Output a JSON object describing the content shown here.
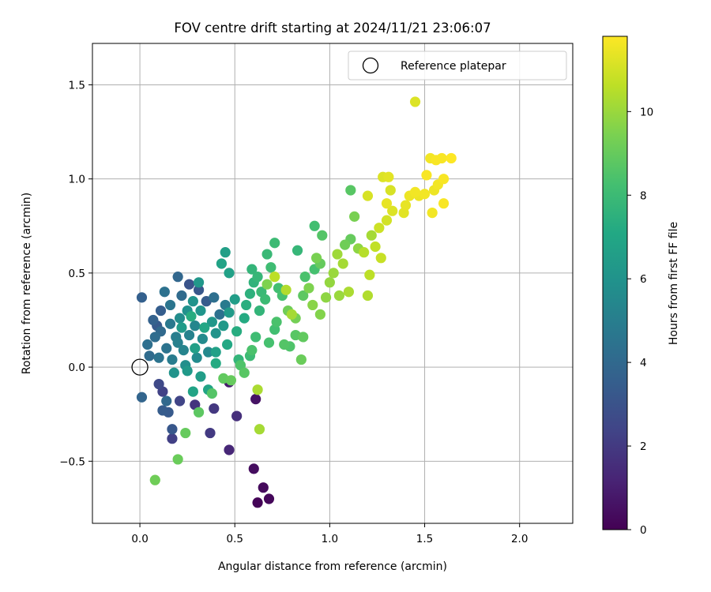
{
  "chart_data": {
    "type": "scatter",
    "title": "FOV centre drift starting at 2024/11/21 23:06:07",
    "xlabel": "Angular distance from reference (arcmin)",
    "ylabel": "Rotation from reference (arcmin)",
    "xlim": [
      -0.25,
      2.28
    ],
    "ylim": [
      -0.83,
      1.72
    ],
    "xticks": [
      0.0,
      0.5,
      1.0,
      1.5,
      2.0
    ],
    "xtick_labels": [
      "0.0",
      "0.5",
      "1.0",
      "1.5",
      "2.0"
    ],
    "yticks": [
      -0.5,
      0.0,
      0.5,
      1.0,
      1.5
    ],
    "ytick_labels": [
      "−0.5",
      "0.0",
      "0.5",
      "1.0",
      "1.5"
    ],
    "grid": true,
    "legend": {
      "position": "top-right",
      "entries": [
        "Reference platepar"
      ]
    },
    "reference_point": {
      "x": 0.0,
      "y": 0.0
    },
    "colorbar": {
      "label": "Hours from first FF file",
      "colormap": "viridis",
      "range": [
        0,
        11.8
      ],
      "ticks": [
        0,
        2,
        4,
        6,
        8,
        10
      ],
      "tick_labels": [
        "0",
        "2",
        "4",
        "6",
        "8",
        "10"
      ]
    },
    "points": [
      {
        "x": 0.62,
        "y": -0.72,
        "t": 0.1
      },
      {
        "x": 0.68,
        "y": -0.7,
        "t": 0.2
      },
      {
        "x": 0.65,
        "y": -0.64,
        "t": 0.3
      },
      {
        "x": 0.6,
        "y": -0.54,
        "t": 0.4
      },
      {
        "x": 0.61,
        "y": -0.17,
        "t": 0.6
      },
      {
        "x": 0.47,
        "y": -0.08,
        "t": 0.9
      },
      {
        "x": 0.47,
        "y": -0.44,
        "t": 1.3
      },
      {
        "x": 0.51,
        "y": -0.26,
        "t": 1.6
      },
      {
        "x": 0.37,
        "y": -0.35,
        "t": 2.0
      },
      {
        "x": 0.39,
        "y": -0.22,
        "t": 1.9
      },
      {
        "x": 0.17,
        "y": -0.38,
        "t": 2.2
      },
      {
        "x": 0.29,
        "y": -0.2,
        "t": 1.8
      },
      {
        "x": 0.21,
        "y": -0.18,
        "t": 2.4
      },
      {
        "x": 0.1,
        "y": -0.09,
        "t": 2.6
      },
      {
        "x": 0.12,
        "y": -0.13,
        "t": 2.3
      },
      {
        "x": 0.17,
        "y": -0.33,
        "t": 3.2
      },
      {
        "x": 0.15,
        "y": -0.24,
        "t": 3.3
      },
      {
        "x": 0.01,
        "y": -0.16,
        "t": 3.8
      },
      {
        "x": 0.12,
        "y": -0.23,
        "t": 3.4
      },
      {
        "x": 0.14,
        "y": -0.18,
        "t": 4.0
      },
      {
        "x": 0.01,
        "y": 0.37,
        "t": 3.6
      },
      {
        "x": 0.07,
        "y": 0.25,
        "t": 3.7
      },
      {
        "x": 0.05,
        "y": 0.06,
        "t": 4.1
      },
      {
        "x": 0.04,
        "y": 0.12,
        "t": 4.3
      },
      {
        "x": 0.08,
        "y": 0.16,
        "t": 4.2
      },
      {
        "x": 0.09,
        "y": 0.22,
        "t": 3.3
      },
      {
        "x": 0.11,
        "y": 0.3,
        "t": 3.5
      },
      {
        "x": 0.13,
        "y": 0.4,
        "t": 4.4
      },
      {
        "x": 0.16,
        "y": 0.33,
        "t": 4.6
      },
      {
        "x": 0.2,
        "y": 0.48,
        "t": 3.9
      },
      {
        "x": 0.22,
        "y": 0.38,
        "t": 4.1
      },
      {
        "x": 0.26,
        "y": 0.44,
        "t": 3.0
      },
      {
        "x": 0.31,
        "y": 0.41,
        "t": 3.2
      },
      {
        "x": 0.35,
        "y": 0.35,
        "t": 3.4
      },
      {
        "x": 0.39,
        "y": 0.37,
        "t": 4.3
      },
      {
        "x": 0.42,
        "y": 0.28,
        "t": 4.4
      },
      {
        "x": 0.45,
        "y": 0.33,
        "t": 4.8
      },
      {
        "x": 0.14,
        "y": 0.1,
        "t": 4.5
      },
      {
        "x": 0.17,
        "y": 0.04,
        "t": 4.9
      },
      {
        "x": 0.2,
        "y": 0.13,
        "t": 5.1
      },
      {
        "x": 0.23,
        "y": 0.09,
        "t": 5.3
      },
      {
        "x": 0.26,
        "y": 0.17,
        "t": 5.2
      },
      {
        "x": 0.29,
        "y": 0.22,
        "t": 5.4
      },
      {
        "x": 0.33,
        "y": 0.15,
        "t": 5.6
      },
      {
        "x": 0.36,
        "y": 0.08,
        "t": 5.5
      },
      {
        "x": 0.21,
        "y": 0.26,
        "t": 5.7
      },
      {
        "x": 0.25,
        "y": 0.3,
        "t": 5.9
      },
      {
        "x": 0.28,
        "y": 0.35,
        "t": 6.0
      },
      {
        "x": 0.32,
        "y": 0.3,
        "t": 6.1
      },
      {
        "x": 0.38,
        "y": 0.24,
        "t": 6.2
      },
      {
        "x": 0.4,
        "y": 0.18,
        "t": 6.0
      },
      {
        "x": 0.44,
        "y": 0.22,
        "t": 6.3
      },
      {
        "x": 0.47,
        "y": 0.29,
        "t": 6.4
      },
      {
        "x": 0.5,
        "y": 0.36,
        "t": 6.5
      },
      {
        "x": 0.45,
        "y": 0.61,
        "t": 6.6
      },
      {
        "x": 0.43,
        "y": 0.55,
        "t": 6.8
      },
      {
        "x": 0.47,
        "y": 0.5,
        "t": 6.7
      },
      {
        "x": 0.31,
        "y": 0.45,
        "t": 6.2
      },
      {
        "x": 0.22,
        "y": 0.21,
        "t": 6.4
      },
      {
        "x": 0.18,
        "y": -0.03,
        "t": 6.0
      },
      {
        "x": 0.25,
        "y": -0.02,
        "t": 6.3
      },
      {
        "x": 0.28,
        "y": -0.13,
        "t": 6.8
      },
      {
        "x": 0.32,
        "y": -0.05,
        "t": 6.5
      },
      {
        "x": 0.36,
        "y": -0.12,
        "t": 6.9
      },
      {
        "x": 0.24,
        "y": 0.01,
        "t": 5.8
      },
      {
        "x": 0.3,
        "y": 0.05,
        "t": 5.6
      },
      {
        "x": 0.4,
        "y": 0.08,
        "t": 6.7
      },
      {
        "x": 0.46,
        "y": 0.12,
        "t": 7.1
      },
      {
        "x": 0.51,
        "y": 0.19,
        "t": 7.3
      },
      {
        "x": 0.55,
        "y": 0.26,
        "t": 7.2
      },
      {
        "x": 0.56,
        "y": 0.33,
        "t": 7.4
      },
      {
        "x": 0.58,
        "y": 0.39,
        "t": 7.5
      },
      {
        "x": 0.6,
        "y": 0.45,
        "t": 7.6
      },
      {
        "x": 0.59,
        "y": 0.52,
        "t": 7.7
      },
      {
        "x": 0.62,
        "y": 0.48,
        "t": 7.8
      },
      {
        "x": 0.63,
        "y": 0.3,
        "t": 7.7
      },
      {
        "x": 0.64,
        "y": 0.4,
        "t": 7.9
      },
      {
        "x": 0.66,
        "y": 0.36,
        "t": 8.0
      },
      {
        "x": 0.69,
        "y": 0.53,
        "t": 8.1
      },
      {
        "x": 0.71,
        "y": 0.66,
        "t": 8.0
      },
      {
        "x": 0.67,
        "y": 0.6,
        "t": 7.9
      },
      {
        "x": 0.73,
        "y": 0.42,
        "t": 8.2
      },
      {
        "x": 0.75,
        "y": 0.38,
        "t": 8.3
      },
      {
        "x": 0.71,
        "y": 0.2,
        "t": 8.2
      },
      {
        "x": 0.72,
        "y": 0.24,
        "t": 8.4
      },
      {
        "x": 0.68,
        "y": 0.13,
        "t": 8.3
      },
      {
        "x": 0.61,
        "y": 0.16,
        "t": 8.1
      },
      {
        "x": 0.58,
        "y": 0.06,
        "t": 8.0
      },
      {
        "x": 0.53,
        "y": 0.01,
        "t": 8.5
      },
      {
        "x": 0.55,
        "y": -0.03,
        "t": 8.7
      },
      {
        "x": 0.44,
        "y": -0.06,
        "t": 8.9
      },
      {
        "x": 0.48,
        "y": -0.07,
        "t": 9.0
      },
      {
        "x": 0.24,
        "y": -0.35,
        "t": 9.0
      },
      {
        "x": 0.2,
        "y": -0.49,
        "t": 9.1
      },
      {
        "x": 0.08,
        "y": -0.6,
        "t": 9.2
      },
      {
        "x": 0.31,
        "y": -0.24,
        "t": 8.8
      },
      {
        "x": 0.38,
        "y": -0.14,
        "t": 8.6
      },
      {
        "x": 0.59,
        "y": 0.09,
        "t": 8.4
      },
      {
        "x": 0.76,
        "y": 0.12,
        "t": 8.6
      },
      {
        "x": 0.79,
        "y": 0.11,
        "t": 8.5
      },
      {
        "x": 0.82,
        "y": 0.17,
        "t": 8.7
      },
      {
        "x": 0.86,
        "y": 0.16,
        "t": 8.9
      },
      {
        "x": 0.85,
        "y": 0.04,
        "t": 9.1
      },
      {
        "x": 0.78,
        "y": 0.3,
        "t": 9.2
      },
      {
        "x": 0.82,
        "y": 0.26,
        "t": 9.3
      },
      {
        "x": 0.86,
        "y": 0.38,
        "t": 8.8
      },
      {
        "x": 0.87,
        "y": 0.48,
        "t": 8.4
      },
      {
        "x": 0.92,
        "y": 0.52,
        "t": 8.3
      },
      {
        "x": 0.95,
        "y": 0.55,
        "t": 9.0
      },
      {
        "x": 0.93,
        "y": 0.58,
        "t": 9.4
      },
      {
        "x": 0.96,
        "y": 0.7,
        "t": 8.6
      },
      {
        "x": 0.92,
        "y": 0.75,
        "t": 8.2
      },
      {
        "x": 0.83,
        "y": 0.62,
        "t": 7.8
      },
      {
        "x": 0.89,
        "y": 0.42,
        "t": 9.5
      },
      {
        "x": 0.91,
        "y": 0.33,
        "t": 9.7
      },
      {
        "x": 0.95,
        "y": 0.28,
        "t": 9.6
      },
      {
        "x": 0.98,
        "y": 0.37,
        "t": 9.8
      },
      {
        "x": 1.0,
        "y": 0.45,
        "t": 9.9
      },
      {
        "x": 1.02,
        "y": 0.5,
        "t": 10.0
      },
      {
        "x": 1.04,
        "y": 0.6,
        "t": 10.1
      },
      {
        "x": 1.07,
        "y": 0.55,
        "t": 10.2
      },
      {
        "x": 1.05,
        "y": 0.38,
        "t": 10.0
      },
      {
        "x": 1.1,
        "y": 0.4,
        "t": 10.3
      },
      {
        "x": 1.08,
        "y": 0.65,
        "t": 9.2
      },
      {
        "x": 1.11,
        "y": 0.68,
        "t": 9.0
      },
      {
        "x": 1.13,
        "y": 0.8,
        "t": 9.4
      },
      {
        "x": 1.11,
        "y": 0.94,
        "t": 8.7
      },
      {
        "x": 1.15,
        "y": 0.63,
        "t": 9.8
      },
      {
        "x": 1.18,
        "y": 0.61,
        "t": 10.5
      },
      {
        "x": 1.21,
        "y": 0.49,
        "t": 10.6
      },
      {
        "x": 1.2,
        "y": 0.38,
        "t": 10.4
      },
      {
        "x": 1.22,
        "y": 0.7,
        "t": 10.2
      },
      {
        "x": 1.24,
        "y": 0.64,
        "t": 10.7
      },
      {
        "x": 1.27,
        "y": 0.58,
        "t": 10.8
      },
      {
        "x": 1.26,
        "y": 0.74,
        "t": 10.9
      },
      {
        "x": 1.3,
        "y": 0.78,
        "t": 11.0
      },
      {
        "x": 1.2,
        "y": 0.91,
        "t": 11.1
      },
      {
        "x": 1.28,
        "y": 1.01,
        "t": 11.2
      },
      {
        "x": 1.31,
        "y": 1.01,
        "t": 11.3
      },
      {
        "x": 1.32,
        "y": 0.94,
        "t": 11.1
      },
      {
        "x": 1.3,
        "y": 0.87,
        "t": 11.4
      },
      {
        "x": 1.33,
        "y": 0.83,
        "t": 11.2
      },
      {
        "x": 1.39,
        "y": 0.82,
        "t": 11.3
      },
      {
        "x": 1.4,
        "y": 0.86,
        "t": 11.4
      },
      {
        "x": 1.42,
        "y": 0.91,
        "t": 11.5
      },
      {
        "x": 1.45,
        "y": 0.93,
        "t": 11.6
      },
      {
        "x": 1.47,
        "y": 0.91,
        "t": 11.5
      },
      {
        "x": 1.5,
        "y": 0.92,
        "t": 11.6
      },
      {
        "x": 1.51,
        "y": 1.02,
        "t": 11.7
      },
      {
        "x": 1.53,
        "y": 1.11,
        "t": 11.6
      },
      {
        "x": 1.56,
        "y": 1.1,
        "t": 11.7
      },
      {
        "x": 1.59,
        "y": 1.11,
        "t": 11.7
      },
      {
        "x": 1.64,
        "y": 1.11,
        "t": 11.8
      },
      {
        "x": 1.57,
        "y": 0.97,
        "t": 11.6
      },
      {
        "x": 1.6,
        "y": 1.0,
        "t": 11.7
      },
      {
        "x": 1.55,
        "y": 0.94,
        "t": 11.5
      },
      {
        "x": 1.54,
        "y": 0.82,
        "t": 11.6
      },
      {
        "x": 1.6,
        "y": 0.87,
        "t": 11.7
      },
      {
        "x": 1.45,
        "y": 1.41,
        "t": 11.2
      },
      {
        "x": 0.71,
        "y": 0.48,
        "t": 10.6
      },
      {
        "x": 0.77,
        "y": 0.41,
        "t": 10.4
      },
      {
        "x": 0.8,
        "y": 0.28,
        "t": 10.2
      },
      {
        "x": 0.67,
        "y": 0.44,
        "t": 9.5
      },
      {
        "x": 0.62,
        "y": -0.12,
        "t": 10.3
      },
      {
        "x": 0.63,
        "y": -0.33,
        "t": 10.2
      },
      {
        "x": 0.52,
        "y": 0.04,
        "t": 7.7
      },
      {
        "x": 0.34,
        "y": 0.21,
        "t": 7.0
      },
      {
        "x": 0.4,
        "y": 0.02,
        "t": 7.2
      },
      {
        "x": 0.27,
        "y": 0.27,
        "t": 7.3
      },
      {
        "x": 0.29,
        "y": 0.1,
        "t": 6.6
      },
      {
        "x": 0.19,
        "y": 0.16,
        "t": 5.0
      },
      {
        "x": 0.16,
        "y": 0.23,
        "t": 4.7
      },
      {
        "x": 0.11,
        "y": 0.19,
        "t": 4.0
      },
      {
        "x": 0.1,
        "y": 0.05,
        "t": 4.5
      }
    ]
  }
}
